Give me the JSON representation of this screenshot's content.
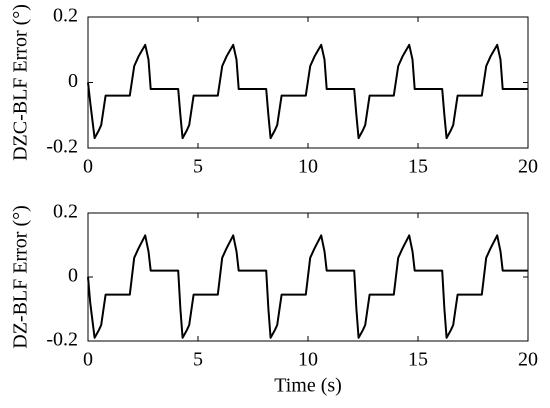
{
  "chart_data": [
    {
      "type": "line",
      "ylabel": "DZC-BLF Error (°)",
      "color": "#000000",
      "x": [
        0,
        0.1,
        0.3,
        0.5,
        0.6,
        0.8,
        1.9,
        2.1,
        2.3,
        2.6,
        2.75,
        2.85,
        4.1,
        4.2,
        4.3,
        4.5,
        4.6,
        4.8,
        5.9,
        6.1,
        6.3,
        6.6,
        6.75,
        6.85,
        8.1,
        8.2,
        8.3,
        8.5,
        8.6,
        8.8,
        9.9,
        10.1,
        10.3,
        10.6,
        10.75,
        10.85,
        12.1,
        12.2,
        12.3,
        12.5,
        12.6,
        12.8,
        13.9,
        14.1,
        14.3,
        14.6,
        14.75,
        14.85,
        16.1,
        16.2,
        16.3,
        16.5,
        16.6,
        16.8,
        17.9,
        18.1,
        18.3,
        18.6,
        18.75,
        18.85,
        20
      ],
      "values": [
        0,
        -0.06,
        -0.17,
        -0.145,
        -0.13,
        -0.04,
        -0.04,
        0.05,
        0.08,
        0.115,
        0.07,
        -0.02,
        -0.02,
        -0.1,
        -0.17,
        -0.145,
        -0.13,
        -0.04,
        -0.04,
        0.05,
        0.08,
        0.115,
        0.07,
        -0.02,
        -0.02,
        -0.1,
        -0.17,
        -0.145,
        -0.13,
        -0.04,
        -0.04,
        0.05,
        0.08,
        0.115,
        0.07,
        -0.02,
        -0.02,
        -0.1,
        -0.17,
        -0.145,
        -0.13,
        -0.04,
        -0.04,
        0.05,
        0.08,
        0.115,
        0.07,
        -0.02,
        -0.02,
        -0.1,
        -0.17,
        -0.145,
        -0.13,
        -0.04,
        -0.04,
        0.05,
        0.08,
        0.115,
        0.07,
        -0.02,
        -0.02
      ],
      "xlim": [
        0,
        20
      ],
      "xticks": [
        0,
        5,
        10,
        15,
        20
      ],
      "ylim": [
        -0.2,
        0.2
      ],
      "yticks": [
        -0.2,
        0,
        0.2
      ]
    },
    {
      "type": "line",
      "ylabel": "DZ-BLF Error (°)",
      "xlabel": "Time (s)",
      "color": "#000000",
      "x": [
        0,
        0.1,
        0.3,
        0.5,
        0.6,
        0.8,
        1.9,
        2.1,
        2.3,
        2.6,
        2.75,
        2.85,
        4.1,
        4.2,
        4.3,
        4.5,
        4.6,
        4.8,
        5.9,
        6.1,
        6.3,
        6.6,
        6.75,
        6.85,
        8.1,
        8.2,
        8.3,
        8.5,
        8.6,
        8.8,
        9.9,
        10.1,
        10.3,
        10.6,
        10.75,
        10.85,
        12.1,
        12.2,
        12.3,
        12.5,
        12.6,
        12.8,
        13.9,
        14.1,
        14.3,
        14.6,
        14.75,
        14.85,
        16.1,
        16.2,
        16.3,
        16.5,
        16.6,
        16.8,
        17.9,
        18.1,
        18.3,
        18.6,
        18.75,
        18.85,
        20
      ],
      "values": [
        0,
        -0.08,
        -0.19,
        -0.165,
        -0.15,
        -0.055,
        -0.055,
        0.06,
        0.09,
        0.13,
        0.08,
        0.02,
        0.02,
        -0.1,
        -0.19,
        -0.165,
        -0.15,
        -0.055,
        -0.055,
        0.06,
        0.09,
        0.13,
        0.08,
        0.02,
        0.02,
        -0.1,
        -0.19,
        -0.165,
        -0.15,
        -0.055,
        -0.055,
        0.06,
        0.09,
        0.13,
        0.08,
        0.02,
        0.02,
        -0.1,
        -0.19,
        -0.165,
        -0.15,
        -0.055,
        -0.055,
        0.06,
        0.09,
        0.13,
        0.08,
        0.02,
        0.02,
        -0.1,
        -0.19,
        -0.165,
        -0.15,
        -0.055,
        -0.055,
        0.06,
        0.09,
        0.13,
        0.08,
        0.02,
        0.02
      ],
      "xlim": [
        0,
        20
      ],
      "xticks": [
        0,
        5,
        10,
        15,
        20
      ],
      "ylim": [
        -0.2,
        0.2
      ],
      "yticks": [
        -0.2,
        0,
        0.2
      ]
    }
  ]
}
